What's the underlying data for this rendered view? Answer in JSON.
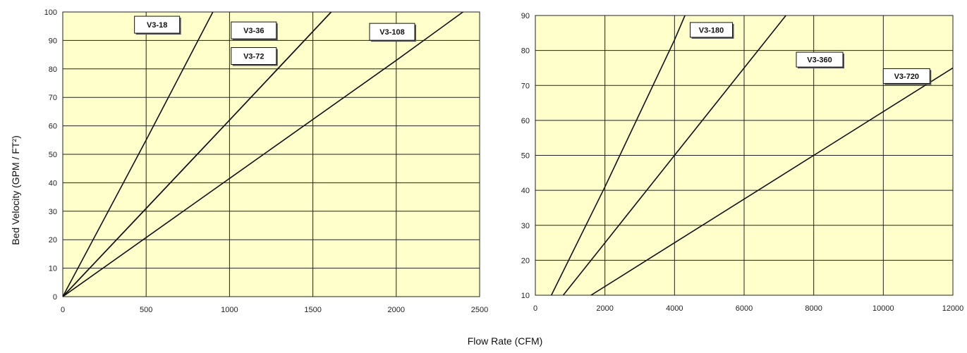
{
  "shared": {
    "ylabel": "Bed Velocity (GPM / FT²)",
    "xlabel": "Flow Rate (CFM)"
  },
  "colors": {
    "plot_bg": "#ffffcc",
    "grid": "#222222",
    "line": "#111111",
    "label_box_bg": "#ffffff"
  },
  "chart_data": [
    {
      "type": "line",
      "xlim": [
        0,
        2500
      ],
      "ylim": [
        0,
        100
      ],
      "x_ticks": [
        0,
        500,
        1000,
        1500,
        2000,
        2500
      ],
      "y_ticks": [
        0,
        10,
        20,
        30,
        40,
        50,
        60,
        70,
        80,
        90,
        100
      ],
      "grid": true,
      "series": [
        {
          "name": "V3-18",
          "x": [
            0,
            500,
            900
          ],
          "y": [
            0,
            55,
            100
          ]
        },
        {
          "name": "V3-36",
          "x": [
            0,
            500,
            1000,
            1610
          ],
          "y": [
            0,
            31,
            62,
            100
          ]
        },
        {
          "name": "V3-72",
          "x": [
            0,
            500,
            1000,
            1610
          ],
          "y": [
            0,
            31,
            62,
            100
          ]
        },
        {
          "name": "V3-108",
          "x": [
            0,
            1000,
            2000,
            2400
          ],
          "y": [
            0,
            41.5,
            83,
            100
          ]
        }
      ]
    },
    {
      "type": "line",
      "xlim": [
        0,
        12000
      ],
      "ylim": [
        10,
        90
      ],
      "x_ticks": [
        0,
        2000,
        4000,
        6000,
        8000,
        10000,
        12000
      ],
      "y_ticks": [
        10,
        20,
        30,
        40,
        50,
        60,
        70,
        80,
        90
      ],
      "grid": true,
      "series": [
        {
          "name": "V3-180",
          "x": [
            460,
            2000,
            4000,
            4300
          ],
          "y": [
            10,
            41,
            83,
            90
          ]
        },
        {
          "name": "V3-360",
          "x": [
            800,
            2000,
            4000,
            7200
          ],
          "y": [
            10,
            25,
            50,
            90
          ]
        },
        {
          "name": "V3-720",
          "x": [
            1600,
            4000,
            8000,
            12000
          ],
          "y": [
            10,
            25,
            50,
            75
          ]
        }
      ]
    }
  ]
}
